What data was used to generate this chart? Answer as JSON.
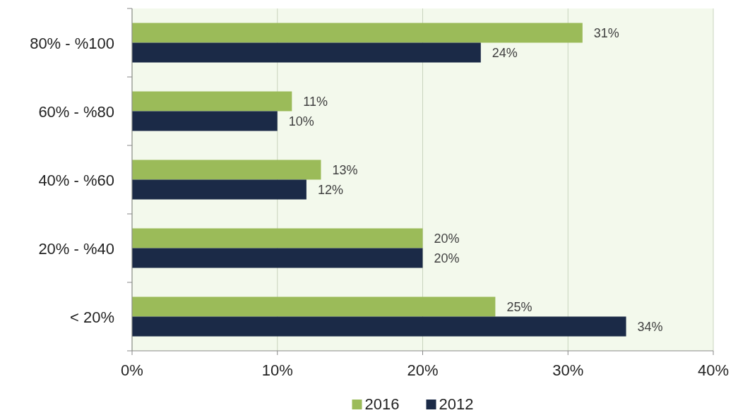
{
  "chart_data": {
    "type": "bar",
    "orientation": "horizontal",
    "categories": [
      "80% - %100",
      "60% - %80",
      "40% - %60",
      "20% - %40",
      "< 20%"
    ],
    "series": [
      {
        "name": "2016",
        "color": "#9bbb59",
        "values": [
          31,
          11,
          13,
          20,
          25
        ],
        "value_labels": [
          "31%",
          "11%",
          "13%",
          "20%",
          "25%"
        ]
      },
      {
        "name": "2012",
        "color": "#1b2a47",
        "values": [
          24,
          10,
          12,
          20,
          34
        ],
        "value_labels": [
          "24%",
          "10%",
          "12%",
          "20%",
          "34%"
        ]
      }
    ],
    "xlim": [
      0,
      40
    ],
    "xticks": [
      {
        "value": 0,
        "label": "0%"
      },
      {
        "value": 10,
        "label": "10%"
      },
      {
        "value": 20,
        "label": "20%"
      },
      {
        "value": 30,
        "label": "30%"
      },
      {
        "value": 40,
        "label": "40%"
      }
    ],
    "grid": "x",
    "legend": "bottom"
  }
}
